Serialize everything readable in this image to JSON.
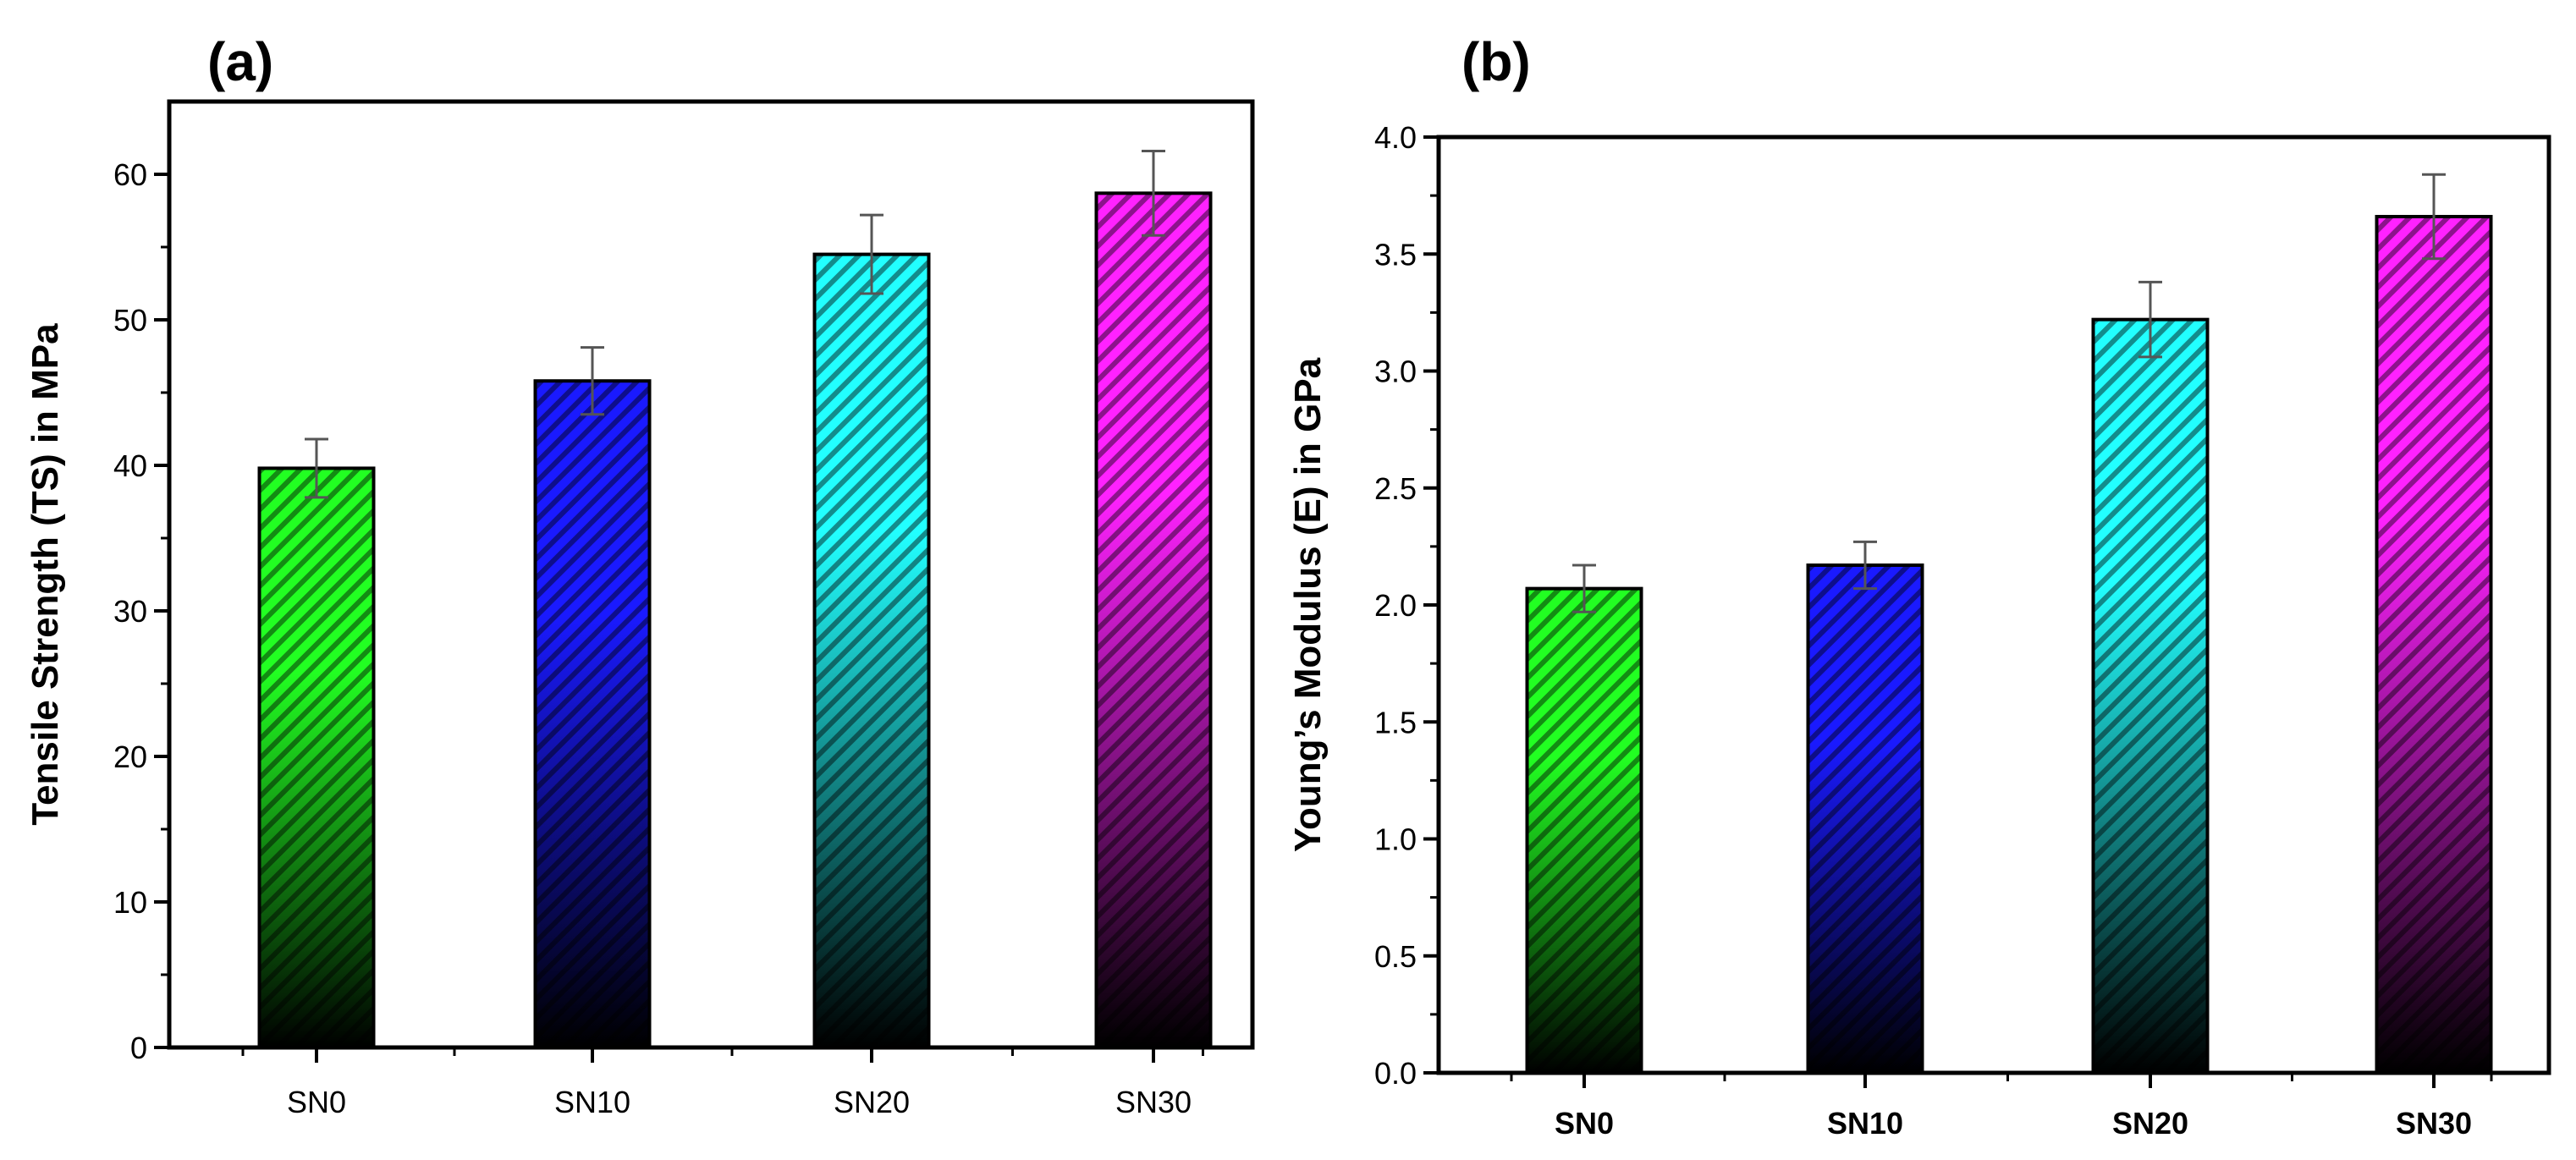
{
  "chart_data": [
    {
      "type": "bar",
      "panel_label": "(a)",
      "categories": [
        "SN0",
        "SN10",
        "SN20",
        "SN30"
      ],
      "values": [
        39.8,
        45.8,
        54.5,
        58.7
      ],
      "errors": [
        2.0,
        2.3,
        2.7,
        2.9
      ],
      "ylabel": "Tensile Strength (TS) in MPa",
      "xlabel": "",
      "ylim": [
        0,
        65
      ],
      "yticks": [
        "0",
        "10",
        "20",
        "30",
        "40",
        "50",
        "60"
      ],
      "ytick_values": [
        0,
        10,
        20,
        30,
        40,
        50,
        60
      ],
      "grid": false
    },
    {
      "type": "bar",
      "panel_label": "(b)",
      "categories": [
        "SN0",
        "SN10",
        "SN20",
        "SN30"
      ],
      "values": [
        2.07,
        2.17,
        3.22,
        3.66
      ],
      "errors": [
        0.1,
        0.1,
        0.16,
        0.18
      ],
      "ylabel": "Young’s Modulus (E) in GPa",
      "xlabel": "",
      "ylim": [
        0,
        4.0
      ],
      "yticks": [
        "0.0",
        "0.5",
        "1.0",
        "1.5",
        "2.0",
        "2.5",
        "3.0",
        "3.5",
        "4.0"
      ],
      "ytick_values": [
        0,
        0.5,
        1.0,
        1.5,
        2.0,
        2.5,
        3.0,
        3.5,
        4.0
      ],
      "grid": false
    }
  ],
  "colors": {
    "SN0": "#22ff22",
    "SN10": "#1a1aff",
    "SN20": "#22ffff",
    "SN30": "#ff22ff",
    "dark": "#000000",
    "hatch": "#000000"
  }
}
